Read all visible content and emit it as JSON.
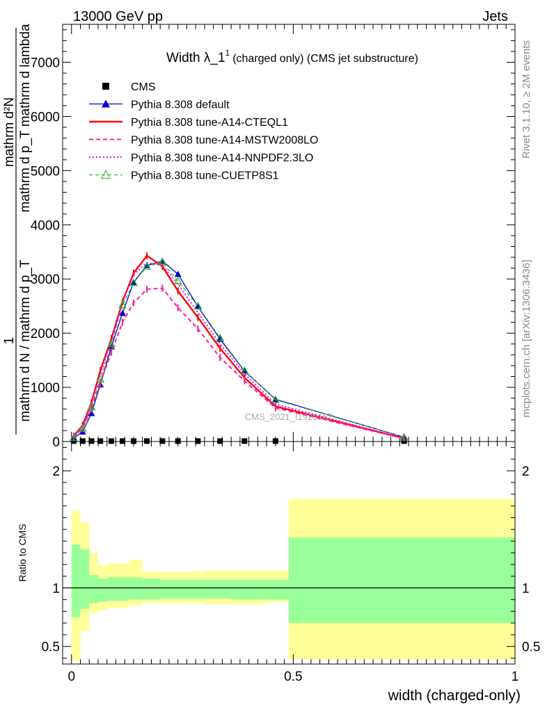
{
  "header": {
    "left": "13000 GeV pp",
    "right": "Jets"
  },
  "side_texts": {
    "rivet": "Rivet 3.1.10, ≥ 2M events",
    "mcplots": "mcplots.cern.ch [arXiv:1306.3436]",
    "watermark": "CMS_2021_I1920187"
  },
  "chart_data": {
    "type": "line",
    "title_main": "Width λ_1",
    "title_sup": "1",
    "title_rest": "(charged only) (CMS jet substructure)",
    "ylabel_top_num": "1",
    "ylabel_top_den": "mathrm d N / mathrm d p_T",
    "ylabel_top_frac_num": "mathrm d²N",
    "ylabel_top_frac_den": "mathrm d p_T mathrm d lambda",
    "ylabel_ratio": "Ratio to CMS",
    "xlabel": "width (charged-only)",
    "xlim": [
      -0.02,
      1.0
    ],
    "ylim_main": [
      0,
      7700
    ],
    "ylim_ratio": [
      0.35,
      2.25
    ],
    "x_ticks": [
      "0",
      "0.5",
      "1"
    ],
    "y_ticks_main": [
      "0",
      "1000",
      "2000",
      "3000",
      "4000",
      "5000",
      "6000",
      "7000"
    ],
    "y_ticks_ratio": [
      "0.5",
      "1",
      "2"
    ],
    "legend_position": "top-left",
    "x": [
      0.005,
      0.025,
      0.045,
      0.065,
      0.09,
      0.115,
      0.14,
      0.17,
      0.205,
      0.24,
      0.285,
      0.335,
      0.39,
      0.46,
      0.75
    ],
    "series": [
      {
        "name": "CMS",
        "color": "#000000",
        "style": "square",
        "values": [
          8,
          8,
          8,
          8,
          8,
          8,
          8,
          8,
          8,
          8,
          8,
          8,
          8,
          8,
          8
        ]
      },
      {
        "name": "Pythia 8.308 default",
        "color": "#0000cc",
        "style": "solid-triangle",
        "values": [
          60,
          180,
          520,
          1050,
          1750,
          2370,
          2940,
          3250,
          3330,
          3090,
          2490,
          1890,
          1300,
          780,
          80
        ]
      },
      {
        "name": "Pythia 8.308 tune-A14-CTEQL1",
        "color": "#ff0000",
        "style": "solid-thick",
        "values": [
          100,
          300,
          720,
          1310,
          1900,
          2580,
          3110,
          3430,
          3230,
          2780,
          2290,
          1720,
          1180,
          650,
          60
        ]
      },
      {
        "name": "Pythia 8.308 tune-A14-MSTW2008LO",
        "color": "#ff1f9a",
        "style": "dashed",
        "values": [
          80,
          250,
          600,
          1080,
          1650,
          2200,
          2560,
          2810,
          2830,
          2470,
          2080,
          1550,
          1120,
          620,
          55
        ]
      },
      {
        "name": "Pythia 8.308 tune-A14-NNPDF2.3LO",
        "color": "#ff00ff",
        "style": "dotted",
        "values": [
          90,
          290,
          700,
          1250,
          1870,
          2600,
          3080,
          3300,
          3250,
          2910,
          2380,
          1800,
          1250,
          690,
          60
        ]
      },
      {
        "name": "Pythia 8.308 tune-CUETP8S1",
        "color": "#22bb22",
        "style": "dashed-open-triangle",
        "values": [
          70,
          240,
          640,
          1150,
          1800,
          2520,
          2930,
          3230,
          3310,
          2960,
          2500,
          1910,
          1310,
          770,
          80
        ]
      }
    ],
    "ratio_bands": {
      "edges": [
        0.0,
        0.02,
        0.04,
        0.06,
        0.08,
        0.1,
        0.13,
        0.16,
        0.2,
        0.25,
        0.3,
        0.36,
        0.44,
        0.49,
        1.0
      ],
      "green_low": [
        0.75,
        0.82,
        0.87,
        0.88,
        0.89,
        0.89,
        0.9,
        0.9,
        0.91,
        0.91,
        0.91,
        0.9,
        0.9,
        0.7
      ],
      "green_high": [
        1.37,
        1.33,
        1.11,
        1.08,
        1.09,
        1.09,
        1.09,
        1.08,
        1.07,
        1.07,
        1.07,
        1.07,
        1.07,
        1.43
      ],
      "yellow_low": [
        0.38,
        0.63,
        0.79,
        0.81,
        0.83,
        0.83,
        0.85,
        0.87,
        0.87,
        0.87,
        0.86,
        0.86,
        0.88,
        0.39
      ],
      "yellow_high": [
        1.66,
        1.56,
        1.3,
        1.19,
        1.21,
        1.21,
        1.24,
        1.14,
        1.14,
        1.14,
        1.15,
        1.15,
        1.15,
        1.76
      ]
    }
  }
}
